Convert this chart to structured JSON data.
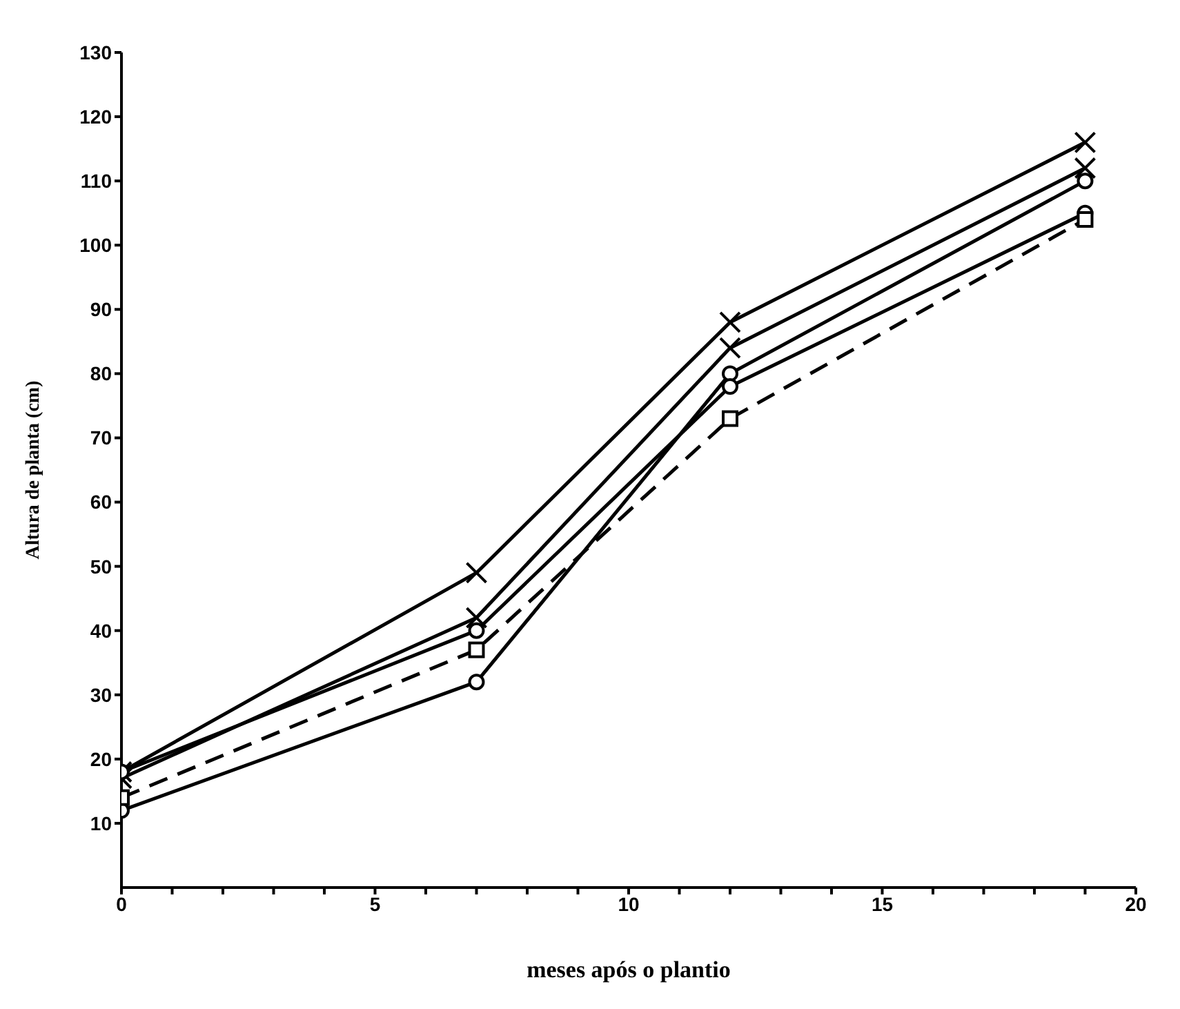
{
  "chart_data": {
    "type": "line",
    "xlabel": "meses após o plantio",
    "ylabel": "Altura de planta (cm)",
    "x": [
      0,
      7,
      12,
      19
    ],
    "xlim": [
      0,
      20
    ],
    "xticks": [
      0,
      {
        "value": 1,
        "label": null
      },
      {
        "value": 2,
        "label": null
      },
      {
        "value": 3,
        "label": null
      },
      {
        "value": 4,
        "label": null
      },
      5,
      {
        "value": 6,
        "label": null
      },
      {
        "value": 7,
        "label": null
      },
      {
        "value": 8,
        "label": null
      },
      {
        "value": 9,
        "label": null
      },
      10,
      {
        "value": 11,
        "label": null
      },
      {
        "value": 12,
        "label": null
      },
      {
        "value": 13,
        "label": null
      },
      {
        "value": 14,
        "label": null
      },
      15,
      {
        "value": 16,
        "label": null
      },
      {
        "value": 17,
        "label": null
      },
      {
        "value": 18,
        "label": null
      },
      {
        "value": 19,
        "label": null
      },
      20
    ],
    "ylim": [
      0,
      130
    ],
    "yticks": [
      10,
      20,
      30,
      40,
      50,
      60,
      70,
      80,
      90,
      100,
      110,
      120,
      130
    ],
    "legend": false,
    "series": [
      {
        "color": "#000000",
        "marker": "cross",
        "line_style": "solid",
        "values": [
          18,
          49,
          88,
          116
        ]
      },
      {
        "color": "#000000",
        "marker": "cross",
        "line_style": "solid",
        "values": [
          17,
          42,
          84,
          112
        ]
      },
      {
        "color": "#000000",
        "marker": "circle",
        "line_style": "solid",
        "values": [
          12,
          32,
          80,
          110
        ]
      },
      {
        "color": "#000000",
        "marker": "circle",
        "line_style": "solid",
        "values": [
          18,
          40,
          78,
          105
        ]
      },
      {
        "color": "#000000",
        "marker": "square",
        "line_style": "dashed",
        "values": [
          14,
          37,
          73,
          104
        ]
      }
    ]
  }
}
